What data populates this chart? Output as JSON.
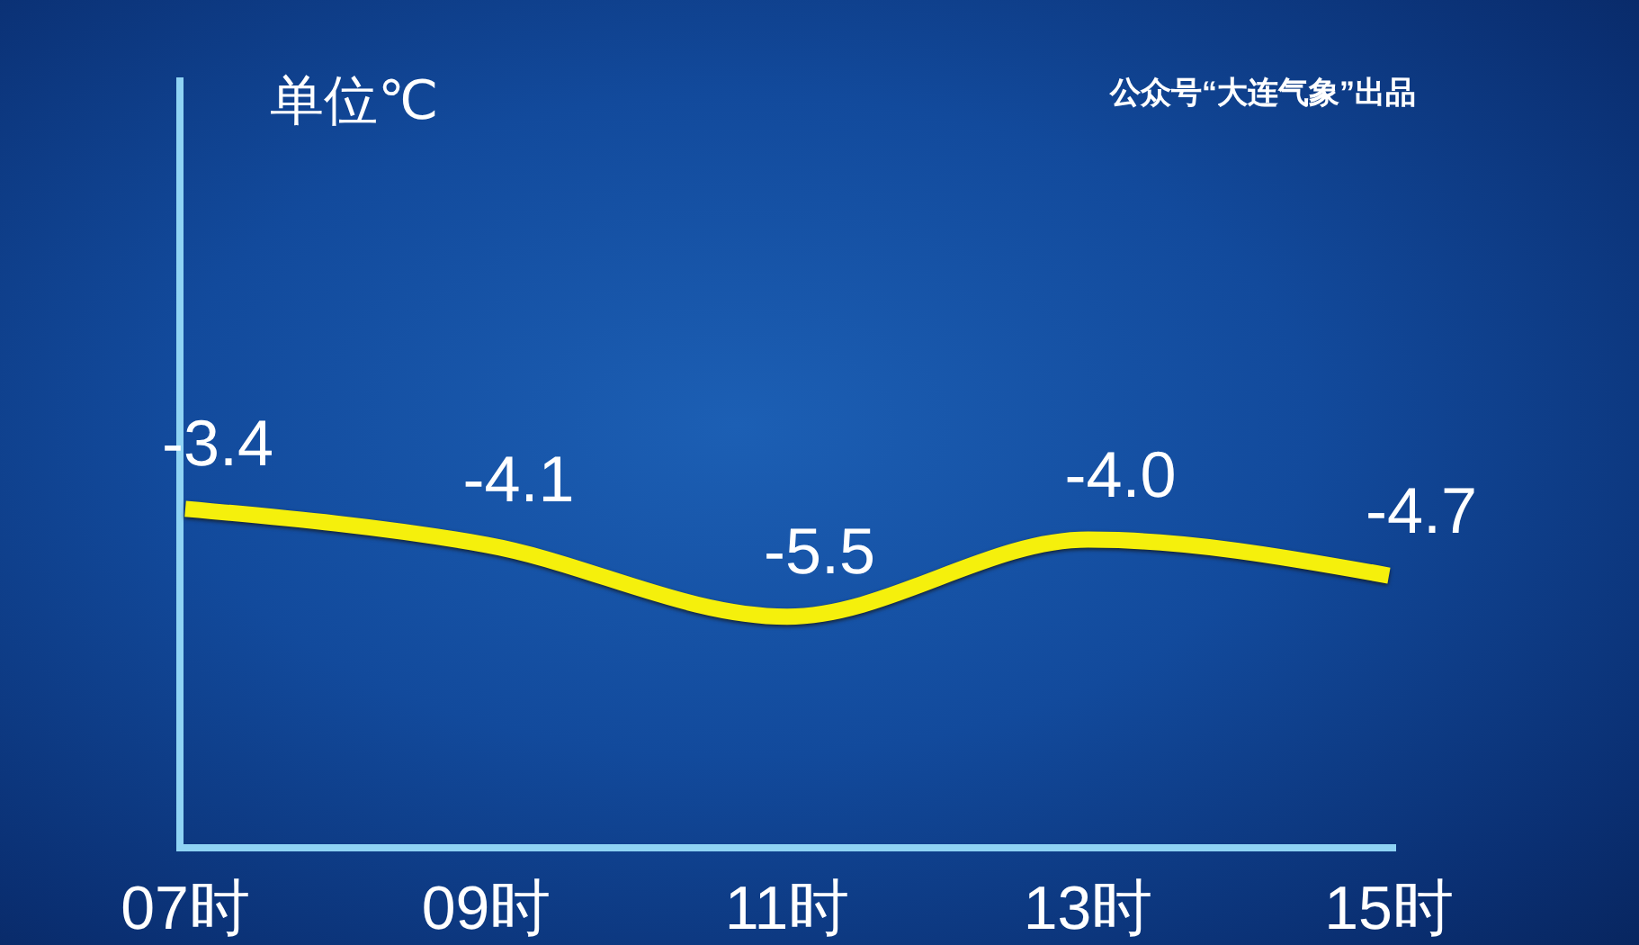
{
  "chart_data": {
    "type": "line",
    "ylabel": "单位℃",
    "annotations": [
      "公众号“大连气象”出品"
    ],
    "categories": [
      "07时",
      "09时",
      "11时",
      "13时",
      "15时"
    ],
    "values": [
      -3.4,
      -4.1,
      -5.5,
      -4.0,
      -4.7
    ],
    "value_labels": [
      "-3.4",
      "-4.1",
      "-5.5",
      "-4.0",
      "-4.7"
    ],
    "color": "#f5f00c",
    "ylim": [
      -10,
      5
    ],
    "tick_labels": "x",
    "marker": "none",
    "line_style": "solid"
  }
}
